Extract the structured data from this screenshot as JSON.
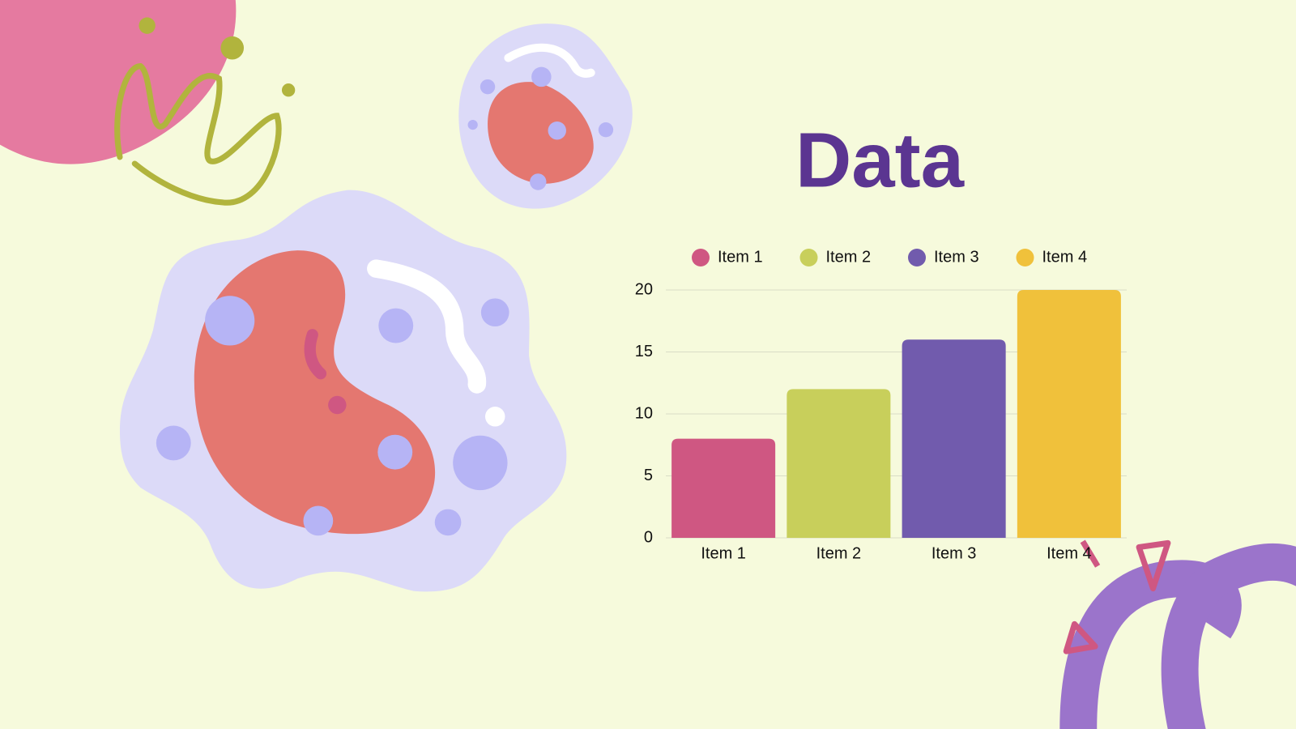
{
  "chart_data": {
    "type": "bar",
    "title": "Data",
    "categories": [
      "Item 1",
      "Item 2",
      "Item 3",
      "Item 4"
    ],
    "values": [
      8,
      12,
      16,
      20
    ],
    "colors": [
      "#cf5782",
      "#c8cf5b",
      "#715bad",
      "#f0c13b"
    ],
    "ylim": [
      0,
      20
    ],
    "yticks": [
      0,
      5,
      10,
      15,
      20
    ],
    "grid": true,
    "legend": "top"
  }
}
